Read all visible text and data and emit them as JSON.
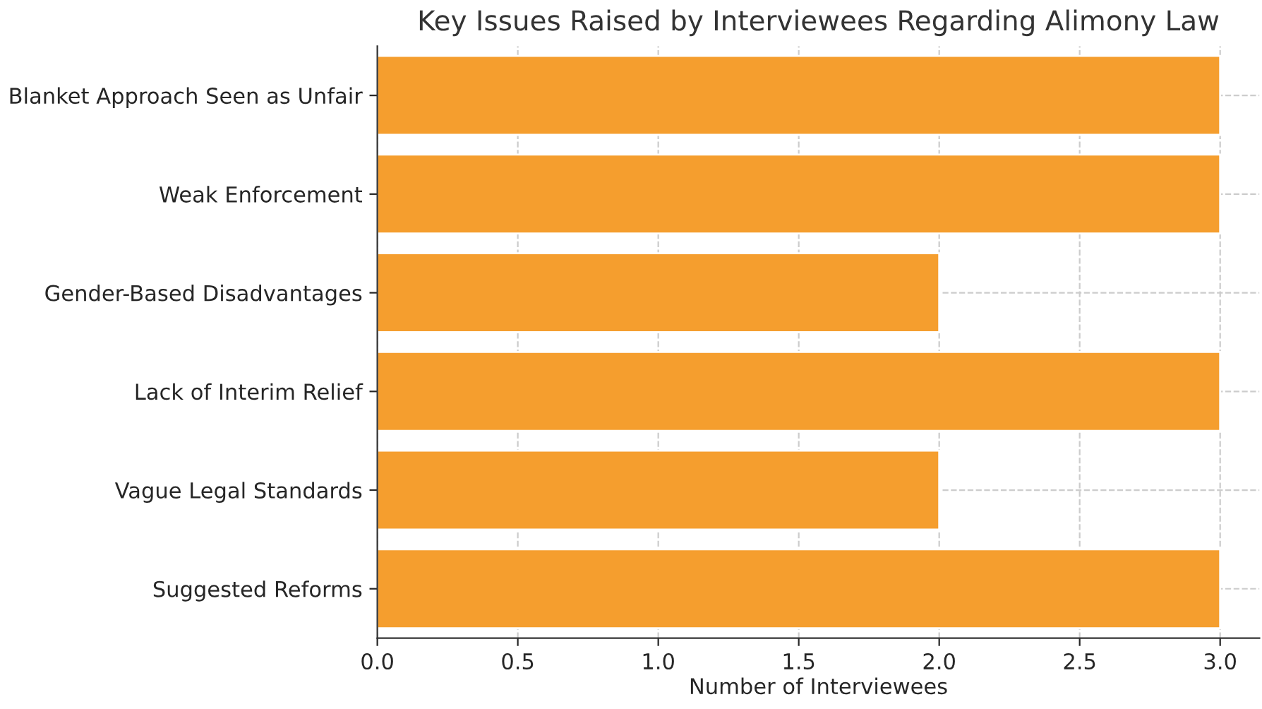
{
  "chart_data": {
    "type": "bar",
    "orientation": "horizontal",
    "title": "Key Issues Raised by Interviewees Regarding Alimony Law",
    "xlabel": "Number of Interviewees",
    "categories": [
      "Blanket Approach Seen as Unfair",
      "Weak Enforcement",
      "Gender-Based Disadvantages",
      "Lack of Interim Relief",
      "Vague Legal Standards",
      "Suggested Reforms"
    ],
    "values": [
      3,
      3,
      2,
      3,
      2,
      3
    ],
    "color": "#f59e2e",
    "xlim": [
      0,
      3.14
    ],
    "xticks": [
      {
        "value": 0,
        "label": "0.0"
      },
      {
        "value": 0.5,
        "label": "0.5"
      },
      {
        "value": 1,
        "label": "1.0"
      },
      {
        "value": 1.5,
        "label": "1.5"
      },
      {
        "value": 2,
        "label": "2.0"
      },
      {
        "value": 2.5,
        "label": "2.5"
      },
      {
        "value": 3,
        "label": "3.0"
      }
    ],
    "grid": true
  }
}
